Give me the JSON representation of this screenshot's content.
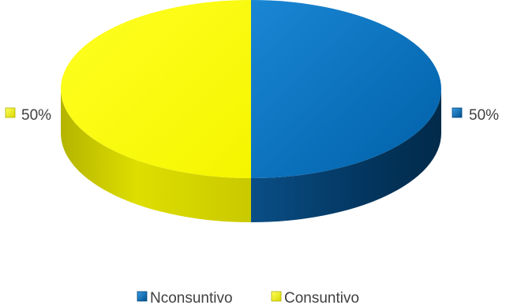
{
  "chart_data": {
    "type": "pie",
    "style": "3d",
    "series": [
      {
        "name": "Nconsuntivo",
        "value": 50,
        "label": "50%",
        "color": "#0070C0",
        "side_color": "#003F6E"
      },
      {
        "name": "Consuntivo",
        "value": 50,
        "label": "50%",
        "color": "#FFFF00",
        "side_color": "#C8C800"
      }
    ],
    "legend": {
      "position": "bottom",
      "entries": [
        "Nconsuntivo",
        "Consuntivo"
      ]
    }
  }
}
